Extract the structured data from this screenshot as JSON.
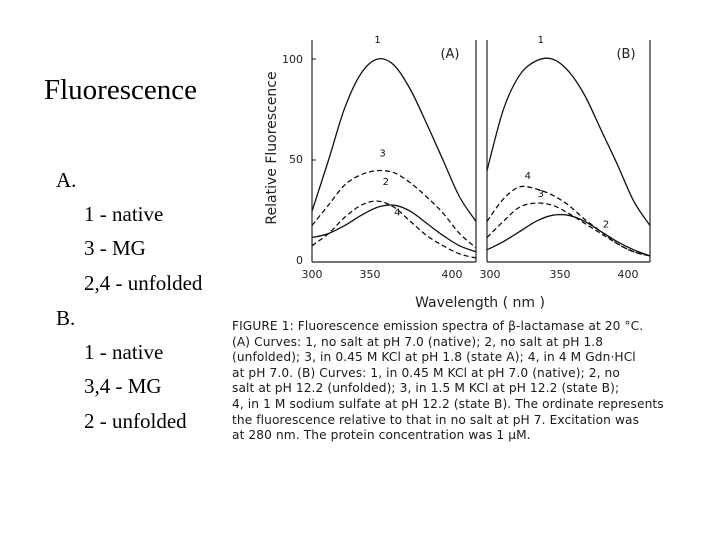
{
  "slide": {
    "title": "Fluorescence",
    "legend": [
      {
        "text": "A.",
        "level": 0
      },
      {
        "text": "1 - native",
        "level": 1
      },
      {
        "text": "3 - MG",
        "level": 1
      },
      {
        "text": "2,4 - unfolded",
        "level": 1
      },
      {
        "text": "B.",
        "level": 0
      },
      {
        "text": "1 - native",
        "level": 1
      },
      {
        "text": "3,4 - MG",
        "level": 1
      },
      {
        "text": "2 - unfolded",
        "level": 1
      }
    ]
  },
  "figure": {
    "panel_a_label": "(A)",
    "panel_b_label": "(B)",
    "ylabel": "Relative Fluorescence",
    "xlabel": "Wavelength ( nm )",
    "y_ticks": [
      "100",
      "50",
      "0"
    ],
    "x_ticks_a": [
      "300",
      "350",
      "400"
    ],
    "x_ticks_b": [
      "300",
      "350",
      "400"
    ],
    "curve_labels_a": [
      "1",
      "2",
      "3",
      "4"
    ],
    "curve_labels_b": [
      "1",
      "2",
      "3",
      "4"
    ],
    "caption_lines": [
      "FIGURE 1: Fluorescence emission spectra of β-lactamase at 20 °C.",
      "(A) Curves: 1, no salt at pH 7.0 (native); 2, no salt at pH 1.8",
      "(unfolded); 3, in 0.45 M KCl at pH 1.8 (state A); 4, in 4 M Gdn·HCl",
      "at pH 7.0. (B) Curves: 1, in 0.45 M KCl at pH 7.0 (native); 2, no",
      "salt at pH 12.2 (unfolded); 3, in 1.5 M KCl at pH 12.2 (state B);",
      "4, in 1 M sodium sulfate at pH 12.2 (state B). The ordinate represents",
      "the fluorescence relative to that in no salt at pH 7. Excitation was",
      "at 280 nm. The protein concentration was 1 μM."
    ]
  },
  "chart_data": [
    {
      "type": "line",
      "title": "(A)",
      "xlabel": "Wavelength ( nm )",
      "ylabel": "Relative Fluorescence",
      "xlim": [
        300,
        400
      ],
      "ylim": [
        0,
        100
      ],
      "x": [
        300,
        310,
        320,
        330,
        340,
        350,
        360,
        370,
        380,
        390,
        400
      ],
      "series": [
        {
          "name": "1",
          "style": "solid",
          "values": [
            25,
            50,
            76,
            93,
            100,
            97,
            85,
            68,
            50,
            32,
            20
          ]
        },
        {
          "name": "2",
          "style": "dashed",
          "values": [
            8,
            14,
            22,
            28,
            30,
            27,
            20,
            13,
            8,
            4,
            2
          ]
        },
        {
          "name": "3",
          "style": "dashed",
          "values": [
            18,
            28,
            38,
            43,
            45,
            44,
            39,
            32,
            24,
            14,
            7
          ]
        },
        {
          "name": "4",
          "style": "solid",
          "values": [
            12,
            14,
            18,
            23,
            27,
            28,
            25,
            19,
            13,
            8,
            5
          ]
        }
      ]
    },
    {
      "type": "line",
      "title": "(B)",
      "xlabel": "Wavelength ( nm )",
      "ylabel": "Relative Fluorescence",
      "xlim": [
        300,
        400
      ],
      "ylim": [
        0,
        100
      ],
      "x": [
        300,
        310,
        320,
        330,
        340,
        350,
        360,
        370,
        380,
        390,
        400
      ],
      "series": [
        {
          "name": "1",
          "style": "solid",
          "values": [
            45,
            75,
            92,
            99,
            100,
            94,
            82,
            65,
            48,
            30,
            18
          ]
        },
        {
          "name": "2",
          "style": "solid",
          "values": [
            6,
            10,
            15,
            20,
            23,
            23,
            20,
            15,
            10,
            6,
            3
          ]
        },
        {
          "name": "3",
          "style": "dashed",
          "values": [
            12,
            20,
            27,
            29,
            28,
            24,
            19,
            14,
            9,
            5,
            3
          ]
        },
        {
          "name": "4",
          "style": "dashed",
          "values": [
            20,
            31,
            37,
            36,
            33,
            28,
            21,
            15,
            9,
            5,
            3
          ]
        }
      ]
    }
  ]
}
